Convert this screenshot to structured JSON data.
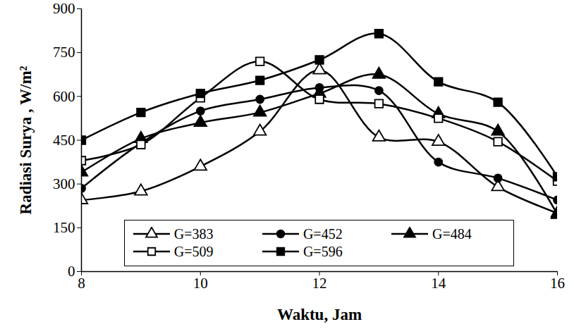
{
  "chart_data": {
    "type": "line",
    "x_label": "Waktu, Jam",
    "y_label": "Radiasi Surya , W/m²",
    "x": [
      8,
      9,
      10,
      11,
      12,
      13,
      14,
      15,
      16
    ],
    "series": [
      {
        "name": "G=383",
        "color": "#000000",
        "marker": "triangle-open",
        "line_style": "solid",
        "values": [
          245,
          275,
          360,
          480,
          690,
          460,
          445,
          290,
          200
        ]
      },
      {
        "name": "G=452",
        "color": "#000000",
        "marker": "circle",
        "line_style": "solid",
        "values": [
          285,
          440,
          550,
          590,
          630,
          620,
          375,
          320,
          245
        ]
      },
      {
        "name": "G=484",
        "color": "#000000",
        "marker": "triangle",
        "line_style": "solid",
        "values": [
          340,
          455,
          510,
          545,
          610,
          675,
          540,
          480,
          195
        ]
      },
      {
        "name": "G=509",
        "color": "#000000",
        "marker": "square-open",
        "line_style": "solid",
        "values": [
          380,
          435,
          595,
          720,
          590,
          575,
          525,
          445,
          310
        ]
      },
      {
        "name": "G=596",
        "color": "#000000",
        "marker": "square",
        "line_style": "solid",
        "values": [
          450,
          545,
          610,
          655,
          725,
          815,
          650,
          580,
          325
        ]
      }
    ],
    "xlim": [
      8,
      16
    ],
    "xticks": [
      8,
      10,
      12,
      14,
      16
    ],
    "ylim": [
      0,
      900
    ],
    "yticks": [
      0,
      150,
      300,
      450,
      600,
      750,
      900
    ],
    "grid": false,
    "legend": "bottom"
  }
}
